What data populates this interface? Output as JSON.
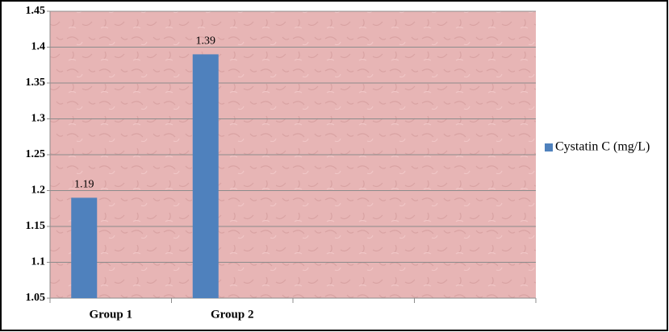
{
  "chart_data": {
    "type": "bar",
    "categories": [
      "Group 1",
      "Group 2",
      null,
      null
    ],
    "series": [
      {
        "name": "Cystatin C (mg/L)",
        "color": "#4f81bd",
        "values": [
          1.19,
          1.39,
          null,
          null
        ]
      }
    ],
    "ylim": [
      1.05,
      1.45
    ],
    "yticks": [
      1.05,
      1.1,
      1.15,
      1.2,
      1.25,
      1.3,
      1.35,
      1.4,
      1.45
    ],
    "grid": true,
    "legend": "right"
  }
}
